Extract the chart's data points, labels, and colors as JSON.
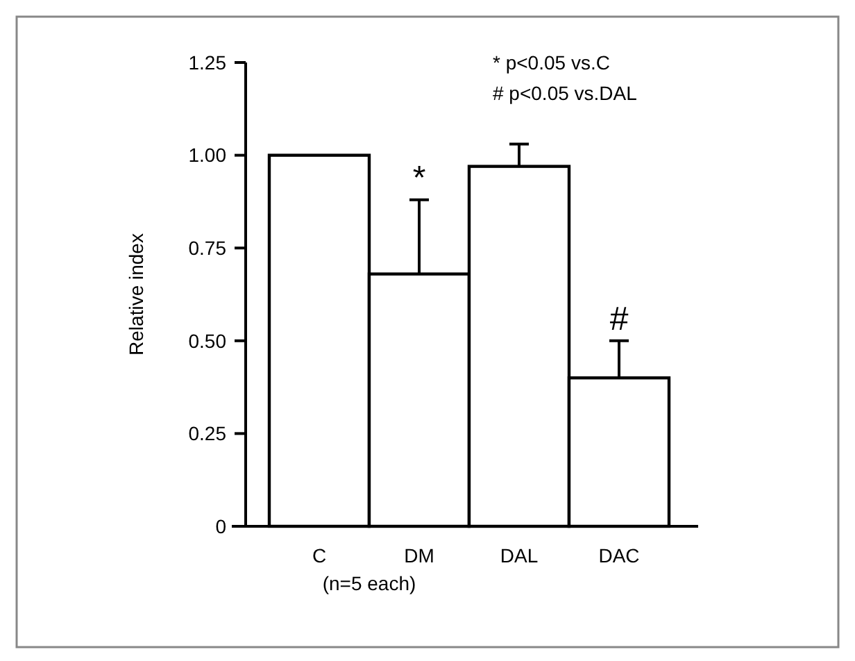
{
  "chart_data": {
    "type": "bar",
    "ylabel": "Relative index",
    "categories": [
      "C",
      "DM",
      "DAL",
      "DAC"
    ],
    "values": [
      1.0,
      0.68,
      0.97,
      0.4
    ],
    "color": "#ffffff",
    "errors": [
      null,
      [
        0.68,
        0.88
      ],
      [
        0.97,
        1.03
      ],
      [
        0.4,
        0.5
      ]
    ],
    "ylim": [
      0,
      1.25
    ],
    "yticks": [
      0,
      0.25,
      {
        "value": 0.5,
        "label": "0.50"
      },
      0.75,
      {
        "value": 1,
        "label": "1.00"
      },
      1.25
    ],
    "grid": false,
    "annotations": [
      "*",
      "#",
      "* p<0.05 vs.C",
      "# p<0.05 vs.DAL",
      "(n=5 each)"
    ]
  }
}
